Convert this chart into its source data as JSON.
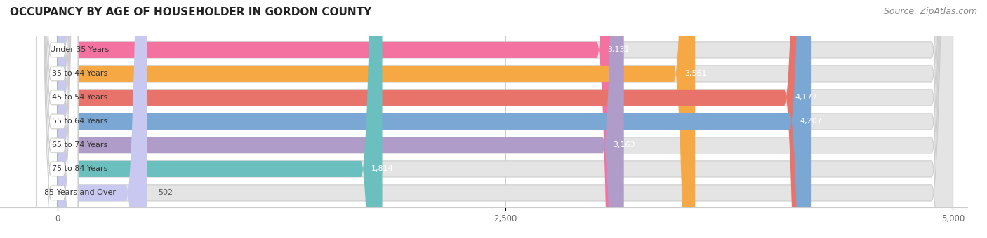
{
  "title": "OCCUPANCY BY AGE OF HOUSEHOLDER IN GORDON COUNTY",
  "source": "Source: ZipAtlas.com",
  "categories": [
    "Under 35 Years",
    "35 to 44 Years",
    "45 to 54 Years",
    "55 to 64 Years",
    "65 to 74 Years",
    "75 to 84 Years",
    "85 Years and Over"
  ],
  "values": [
    3131,
    3561,
    4177,
    4207,
    3163,
    1814,
    502
  ],
  "bar_colors": [
    "#f472a0",
    "#f5a843",
    "#e8736a",
    "#7ba7d4",
    "#b09cc8",
    "#6bbfbf",
    "#c8c8f0"
  ],
  "bar_bg_color": "#e4e4e4",
  "xlim_max": 5000,
  "xticks": [
    0,
    2500,
    5000
  ],
  "title_fontsize": 11,
  "source_fontsize": 9,
  "label_fontsize": 8,
  "value_fontsize": 8,
  "tick_fontsize": 8.5,
  "bar_height": 0.68,
  "figure_bg": "#ffffff",
  "label_bg": "#ffffff",
  "grid_color": "#cccccc",
  "value_color_inside": "#ffffff",
  "value_color_outside": "#555555",
  "value_threshold": 700
}
